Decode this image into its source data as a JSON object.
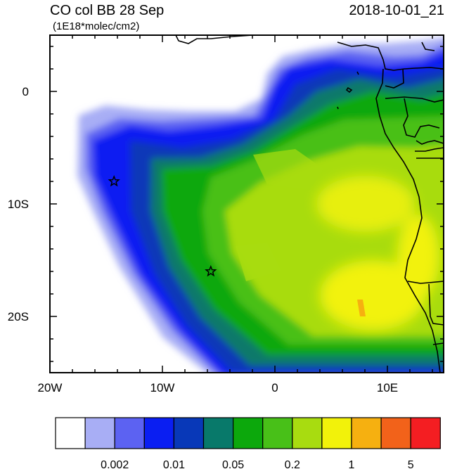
{
  "title": "CO col BB 28 Sep",
  "subtitle": "(1E18*molec/cm2)",
  "timestamp": "2018-10-01_21",
  "map": {
    "lon_range": [
      -20,
      15
    ],
    "lat_range": [
      -25,
      5
    ],
    "x_ticks": [
      {
        "value": -20,
        "label": "20W"
      },
      {
        "value": -10,
        "label": "10W"
      },
      {
        "value": 0,
        "label": "0"
      },
      {
        "value": 10,
        "label": "10E"
      }
    ],
    "y_ticks": [
      {
        "value": 0,
        "label": "0"
      },
      {
        "value": -10,
        "label": "10S"
      },
      {
        "value": -20,
        "label": "20S"
      }
    ],
    "markers": [
      {
        "type": "star",
        "lon": -14.3,
        "lat": -8.0
      },
      {
        "type": "star",
        "lon": -5.7,
        "lat": -16.0
      }
    ]
  },
  "colorbar": {
    "colors": [
      "#ffffff",
      "#a8aef5",
      "#5c62f2",
      "#0a1ef2",
      "#0838b8",
      "#08796a",
      "#0ca80c",
      "#48c018",
      "#a8dc10",
      "#f2f20a",
      "#f6b010",
      "#f2621a",
      "#f41e22"
    ],
    "labels": [
      {
        "text": "0.002",
        "after_box": 2
      },
      {
        "text": "0.01",
        "after_box": 4
      },
      {
        "text": "0.05",
        "after_box": 6
      },
      {
        "text": "0.2",
        "after_box": 8
      },
      {
        "text": "1",
        "after_box": 10
      },
      {
        "text": "5",
        "after_box": 12
      }
    ]
  }
}
